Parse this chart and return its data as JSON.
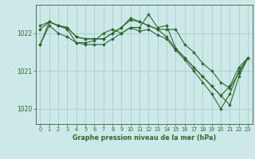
{
  "title": "Graphe pression niveau de la mer (hPa)",
  "background_color": "#cce8e8",
  "grid_color": "#aacccc",
  "line_color": "#2d6a2d",
  "marker_color": "#2d6a2d",
  "xlim": [
    -0.5,
    23.5
  ],
  "ylim": [
    1019.6,
    1022.75
  ],
  "yticks": [
    1020,
    1021,
    1022
  ],
  "xticks": [
    0,
    1,
    2,
    3,
    4,
    5,
    6,
    7,
    8,
    9,
    10,
    11,
    12,
    13,
    14,
    15,
    16,
    17,
    18,
    19,
    20,
    21,
    22,
    23
  ],
  "series": [
    [
      1021.7,
      1022.2,
      1022.0,
      1021.9,
      1021.75,
      1021.75,
      1021.8,
      1022.0,
      1022.1,
      1022.0,
      1022.15,
      1022.15,
      1022.5,
      1022.15,
      1022.2,
      1021.6,
      1021.35,
      1021.1,
      1020.85,
      1020.6,
      1020.35,
      1020.1,
      1020.85,
      1021.35
    ],
    [
      1022.2,
      1022.3,
      1022.2,
      1022.15,
      1021.9,
      1021.85,
      1021.85,
      1021.85,
      1022.0,
      1022.15,
      1022.4,
      1022.3,
      1022.2,
      1022.1,
      1022.1,
      1022.1,
      1021.7,
      1021.5,
      1021.2,
      1021.0,
      1020.7,
      1020.55,
      1020.95,
      1021.35
    ],
    [
      1021.7,
      1022.3,
      1022.2,
      1022.1,
      1021.75,
      1021.7,
      1021.7,
      1021.7,
      1021.85,
      1022.0,
      1022.15,
      1022.05,
      1022.1,
      1021.95,
      1021.85,
      1021.55,
      1021.3,
      1021.0,
      1020.7,
      1020.4,
      1020.0,
      1020.4,
      1021.0,
      1021.35
    ],
    [
      1022.1,
      1022.3,
      1022.2,
      1022.15,
      1021.9,
      1021.85,
      1021.85,
      1021.85,
      1022.0,
      1022.15,
      1022.35,
      1022.3,
      1022.2,
      1022.1,
      1021.9,
      1021.6,
      1021.35,
      1021.1,
      1020.85,
      1020.6,
      1020.35,
      1020.6,
      1021.1,
      1021.35
    ]
  ]
}
